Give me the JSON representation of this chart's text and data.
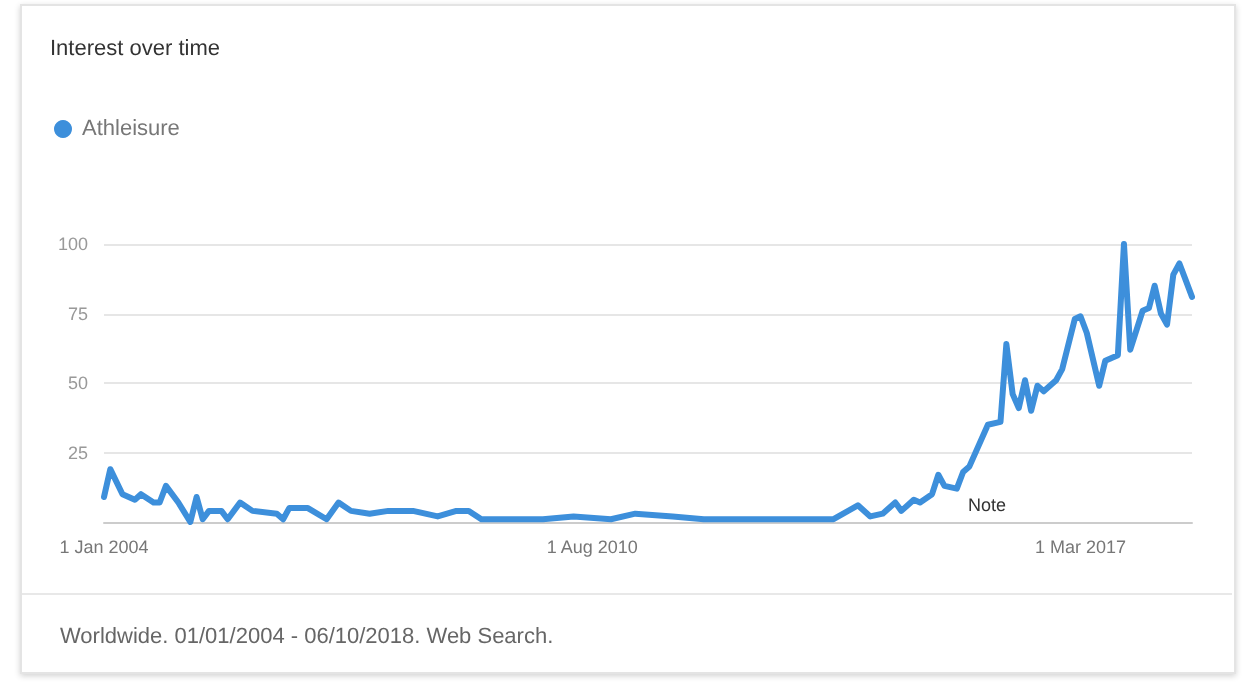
{
  "chart_data": {
    "type": "line",
    "title": "Interest over time",
    "x": [
      "2004-01",
      "2004-02",
      "2004-04",
      "2004-06",
      "2004-07",
      "2004-09",
      "2004-10",
      "2004-11",
      "2005-01",
      "2005-03",
      "2005-04",
      "2005-05",
      "2005-06",
      "2005-08",
      "2005-09",
      "2005-11",
      "2006-01",
      "2006-05",
      "2006-06",
      "2006-07",
      "2006-10",
      "2007-01",
      "2007-03",
      "2007-05",
      "2007-08",
      "2007-11",
      "2008-03",
      "2008-07",
      "2008-10",
      "2008-12",
      "2009-02",
      "2009-07",
      "2009-12",
      "2010-05",
      "2010-11",
      "2011-03",
      "2011-09",
      "2012-02",
      "2012-06",
      "2012-12",
      "2013-06",
      "2013-11",
      "2014-03",
      "2014-05",
      "2014-07",
      "2014-09",
      "2014-10",
      "2014-12",
      "2015-01",
      "2015-03",
      "2015-04",
      "2015-05",
      "2015-07",
      "2015-08",
      "2015-09",
      "2015-12",
      "2016-02",
      "2016-03",
      "2016-04",
      "2016-05",
      "2016-06",
      "2016-07",
      "2016-08",
      "2016-09",
      "2016-11",
      "2016-12",
      "2017-02",
      "2017-03",
      "2017-04",
      "2017-06",
      "2017-07",
      "2017-09",
      "2017-10",
      "2017-11",
      "2018-01",
      "2018-02",
      "2018-03",
      "2018-04",
      "2018-05",
      "2018-06",
      "2018-07",
      "2018-08",
      "2018-09"
    ],
    "series": [
      {
        "name": "Athleisure",
        "color": "#3d8fdb",
        "values": [
          9,
          19,
          10,
          8,
          10,
          7,
          7,
          13,
          7,
          0,
          9,
          1,
          4,
          4,
          1,
          7,
          4,
          3,
          1,
          5,
          5,
          1,
          7,
          4,
          3,
          4,
          4,
          2,
          4,
          4,
          1,
          1,
          1,
          2,
          1,
          3,
          2,
          1,
          1,
          1,
          1,
          1,
          6,
          2,
          3,
          7,
          4,
          8,
          7,
          10,
          17,
          13,
          12,
          18,
          20,
          35,
          36,
          64,
          46,
          41,
          51,
          40,
          49,
          47,
          51,
          55,
          73,
          74,
          68,
          49,
          58,
          60,
          100,
          62,
          76,
          77,
          85,
          75,
          71,
          89,
          93,
          87,
          81
        ]
      }
    ],
    "xlim": [
      "2004-01",
      "2018-09"
    ],
    "xticks": [
      {
        "value": "2004-01-01",
        "label": "1 Jan 2004"
      },
      {
        "value": "2010-08-01",
        "label": "1 Aug 2010"
      },
      {
        "value": "2017-03-01",
        "label": "1 Mar 2017"
      }
    ],
    "ylim": [
      0,
      100
    ],
    "yticks": [
      {
        "value": 0,
        "label": null
      },
      25,
      50,
      75,
      100
    ],
    "grid": "y",
    "legend": "top left",
    "marker": "none",
    "line_style": "solid",
    "annotations": [
      "Note",
      "Worldwide. 01/01/2004 - 06/10/2018. Web Search."
    ]
  }
}
